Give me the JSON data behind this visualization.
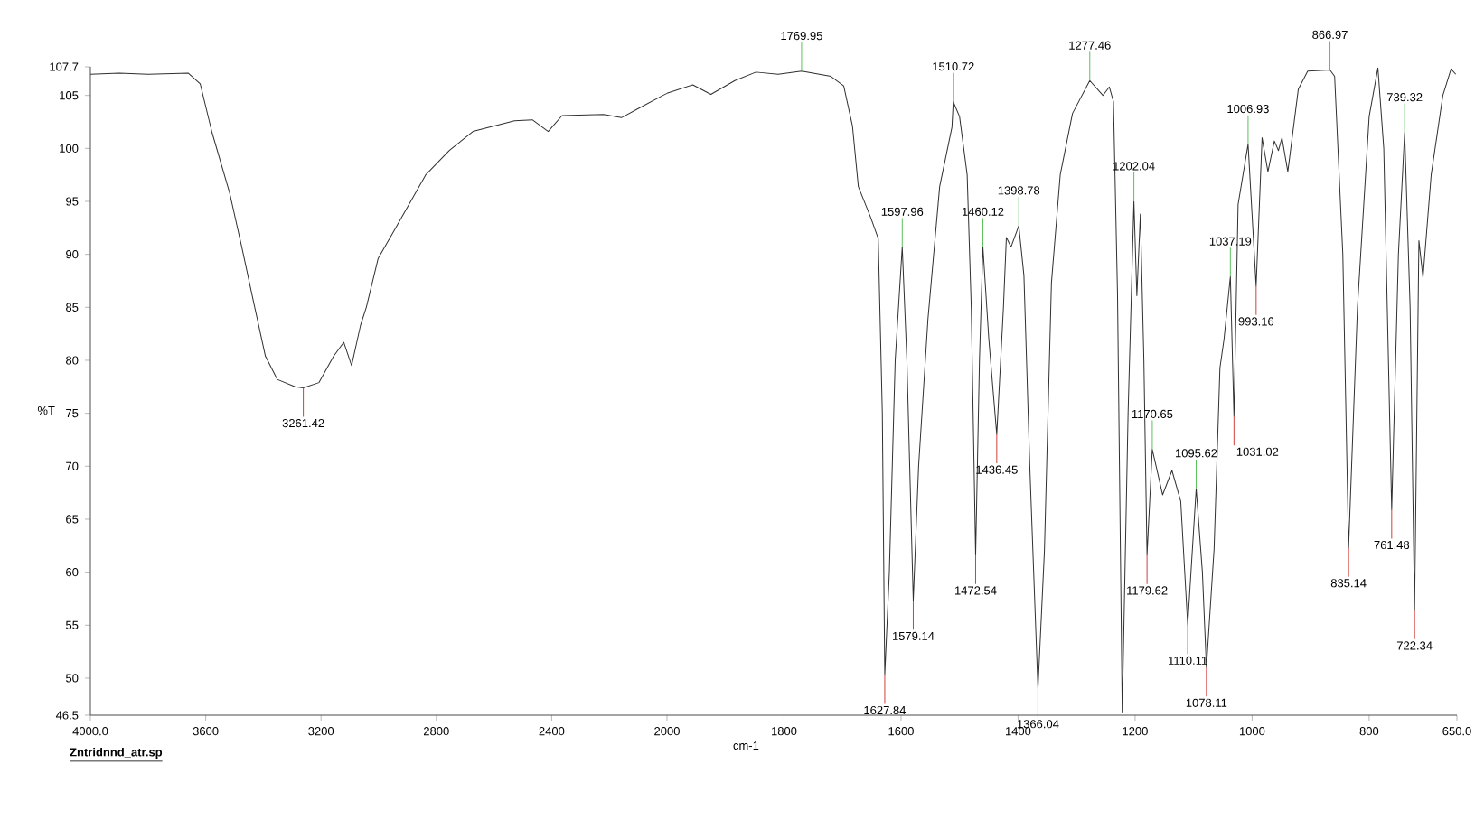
{
  "chart_data": [
    {
      "type": "line",
      "ylabel": "%T",
      "xlim": [
        4000,
        2000
      ],
      "xticks": [
        {
          "value": 4000,
          "label": "4000.0"
        },
        3600,
        3200,
        2800,
        2400,
        2000
      ],
      "ylim": [
        46.5,
        107.7
      ],
      "yticks": [
        46.5,
        50,
        55,
        60,
        65,
        70,
        75,
        80,
        85,
        90,
        95,
        100,
        105,
        107.7
      ],
      "x": [
        4000,
        3900,
        3800,
        3660,
        3619,
        3578,
        3517,
        3475,
        3434,
        3393,
        3352,
        3290,
        3261.42,
        3207,
        3156,
        3121,
        3094,
        3063,
        3043,
        3002,
        2920,
        2837,
        2755,
        2673,
        2529,
        2467,
        2412,
        2364,
        2220,
        2158,
        2097,
        2014,
        2000
      ],
      "series": [
        {
          "color": "#303030",
          "values": [
            107.0,
            107.1,
            107.0,
            107.1,
            106.1,
            101.5,
            95.8,
            90.7,
            85.5,
            80.4,
            78.2,
            77.5,
            77.4,
            77.9,
            80.4,
            81.7,
            79.5,
            83.3,
            85.0,
            89.6,
            93.5,
            97.5,
            99.8,
            101.6,
            102.6,
            102.7,
            101.6,
            103.1,
            103.2,
            102.9,
            103.8,
            105.0,
            105.2
          ]
        }
      ],
      "annotations": [
        {
          "text": "3261.42",
          "x": 3261.42,
          "y": 77.4
        },
        "Zntridnnd_atr.sp"
      ]
    },
    {
      "type": "line",
      "xlabel": "cm-1",
      "tick_labels": "x",
      "xlim": [
        2000,
        650
      ],
      "xticks": [
        1800,
        1600,
        1400,
        1200,
        1000,
        800,
        {
          "value": 650,
          "label": "650.0"
        }
      ],
      "ylim": [
        46.5,
        107.7
      ],
      "x": [
        2000,
        1956,
        1925,
        1884,
        1848,
        1810,
        1769.95,
        1720,
        1698,
        1683,
        1673,
        1652,
        1639,
        1632,
        1627.84,
        1620,
        1610,
        1597.96,
        1590,
        1579.14,
        1570,
        1554,
        1534,
        1513,
        1510.72,
        1500,
        1487,
        1480,
        1472.54,
        1466,
        1460.12,
        1450,
        1436.45,
        1425,
        1420,
        1412,
        1398.78,
        1390,
        1380,
        1366.04,
        1355,
        1343,
        1328,
        1307,
        1277.46,
        1255,
        1244,
        1237,
        1230,
        1222,
        1212,
        1202.04,
        1197,
        1191,
        1185,
        1179.62,
        1170.65,
        1153,
        1137,
        1122,
        1110.11,
        1095.62,
        1085,
        1078.11,
        1065,
        1055,
        1048,
        1037.19,
        1031.02,
        1024,
        1006.93,
        993.16,
        983,
        973,
        962,
        955,
        949,
        939,
        921,
        905,
        866.97,
        859,
        845,
        835.14,
        820,
        800,
        785,
        775,
        761.48,
        750,
        739.32,
        730,
        722.34,
        715,
        708,
        694,
        674,
        660,
        652
      ],
      "series": [
        {
          "color": "#303030",
          "values": [
            105.2,
            106.0,
            105.1,
            106.4,
            107.2,
            107.0,
            107.3,
            106.8,
            105.9,
            102.1,
            96.4,
            93.5,
            91.5,
            75,
            50.3,
            60,
            80,
            90.7,
            80,
            57.3,
            70,
            83.9,
            96.4,
            102,
            104.4,
            103,
            97.5,
            85,
            61.6,
            80,
            90.7,
            82,
            73.0,
            85,
            91.6,
            90.7,
            92.7,
            88,
            70,
            49.0,
            62,
            87.3,
            97.5,
            103.3,
            106.4,
            105.0,
            105.8,
            104.4,
            86.1,
            46.8,
            75,
            95.0,
            86.1,
            93.8,
            80,
            61.6,
            71.6,
            67.3,
            69.6,
            66.7,
            55.0,
            67.9,
            60,
            51.0,
            62.2,
            79.3,
            82,
            87.9,
            74.7,
            94.7,
            100.4,
            87.0,
            101,
            97.8,
            100.7,
            99.8,
            101,
            97.8,
            105.6,
            107.3,
            107.4,
            106.8,
            90,
            62.3,
            85,
            103,
            107.6,
            100,
            65.9,
            90,
            101.5,
            85,
            56.4,
            91.3,
            87.8,
            97.5,
            105,
            107.5,
            107.0
          ]
        }
      ],
      "annotations": [
        {
          "text": "1769.95",
          "x": 1769.95,
          "y": 107.3
        },
        {
          "text": "1627.84",
          "x": 1627.84,
          "y": 50.3
        },
        {
          "text": "1597.96",
          "x": 1597.96,
          "y": 90.7
        },
        {
          "text": "1579.14",
          "x": 1579.14,
          "y": 57.3
        },
        {
          "text": "1510.72",
          "x": 1510.72,
          "y": 104.4
        },
        {
          "text": "1472.54",
          "x": 1472.54,
          "y": 61.6
        },
        {
          "text": "1460.12",
          "x": 1460.12,
          "y": 90.7
        },
        {
          "text": "1436.45",
          "x": 1436.45,
          "y": 73.0
        },
        {
          "text": "1398.78",
          "x": 1398.78,
          "y": 92.7
        },
        {
          "text": "1366.04",
          "x": 1366.04,
          "y": 49.0
        },
        {
          "text": "1277.46",
          "x": 1277.46,
          "y": 106.4
        },
        {
          "text": "1202.04",
          "x": 1202.04,
          "y": 95.0
        },
        {
          "text": "1179.62",
          "x": 1179.62,
          "y": 61.6
        },
        {
          "text": "1170.65",
          "x": 1170.65,
          "y": 71.6
        },
        {
          "text": "1110.11",
          "x": 1110.11,
          "y": 55.0
        },
        {
          "text": "1095.62",
          "x": 1095.62,
          "y": 67.9
        },
        {
          "text": "1078.11",
          "x": 1078.11,
          "y": 51.0
        },
        {
          "text": "1037.19",
          "x": 1037.19,
          "y": 87.9
        },
        {
          "text": "1031.02",
          "x": 1031.02,
          "y": 74.7
        },
        {
          "text": "1006.93",
          "x": 1006.93,
          "y": 100.4
        },
        {
          "text": "993.16",
          "x": 993.16,
          "y": 87.0
        },
        {
          "text": "866.97",
          "x": 866.97,
          "y": 107.4
        },
        {
          "text": "835.14",
          "x": 835.14,
          "y": 62.3
        },
        {
          "text": "761.48",
          "x": 761.48,
          "y": 65.9
        },
        {
          "text": "739.32",
          "x": 739.32,
          "y": 101.5
        },
        {
          "text": "722.34",
          "x": 722.34,
          "y": 56.4
        }
      ]
    }
  ]
}
